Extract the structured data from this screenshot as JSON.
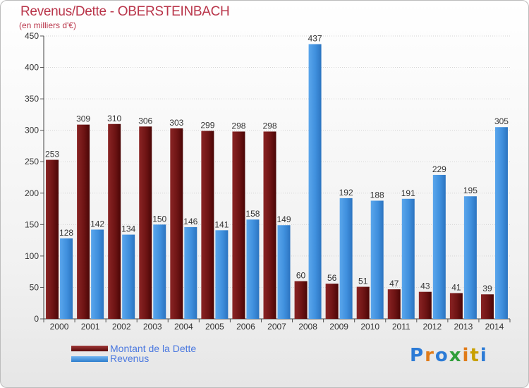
{
  "header": {
    "title": "Revenus/Dette - OBERSTEINBACH",
    "subtitle": "(en milliers d'€)"
  },
  "legend": [
    {
      "label": "Montant de la Dette",
      "color": "#6e1010"
    },
    {
      "label": "Revenus",
      "color": "#3f8fdd"
    }
  ],
  "logo": {
    "text": "Proxiti",
    "colors": [
      "#2c7bd6",
      "#e07b18",
      "#2c7bd6",
      "#2f9e3a",
      "#e07b18",
      "#c8a000",
      "#2c7bd6"
    ]
  },
  "chart_data": {
    "type": "bar",
    "categories": [
      "2000",
      "2001",
      "2002",
      "2003",
      "2004",
      "2005",
      "2006",
      "2007",
      "2008",
      "2009",
      "2010",
      "2011",
      "2012",
      "2013",
      "2014"
    ],
    "series": [
      {
        "name": "Montant de la Dette",
        "values": [
          253,
          309,
          310,
          306,
          303,
          299,
          298,
          298,
          60,
          56,
          51,
          47,
          43,
          41,
          39
        ],
        "color": "#6e1010"
      },
      {
        "name": "Revenus",
        "values": [
          128,
          142,
          134,
          150,
          146,
          141,
          158,
          149,
          437,
          192,
          188,
          191,
          229,
          195,
          305
        ],
        "color": "#3f8fdd"
      }
    ],
    "ylim": [
      0,
      450
    ],
    "yticks": [
      0,
      50,
      100,
      150,
      200,
      250,
      300,
      350,
      400,
      450
    ],
    "grid": true
  }
}
